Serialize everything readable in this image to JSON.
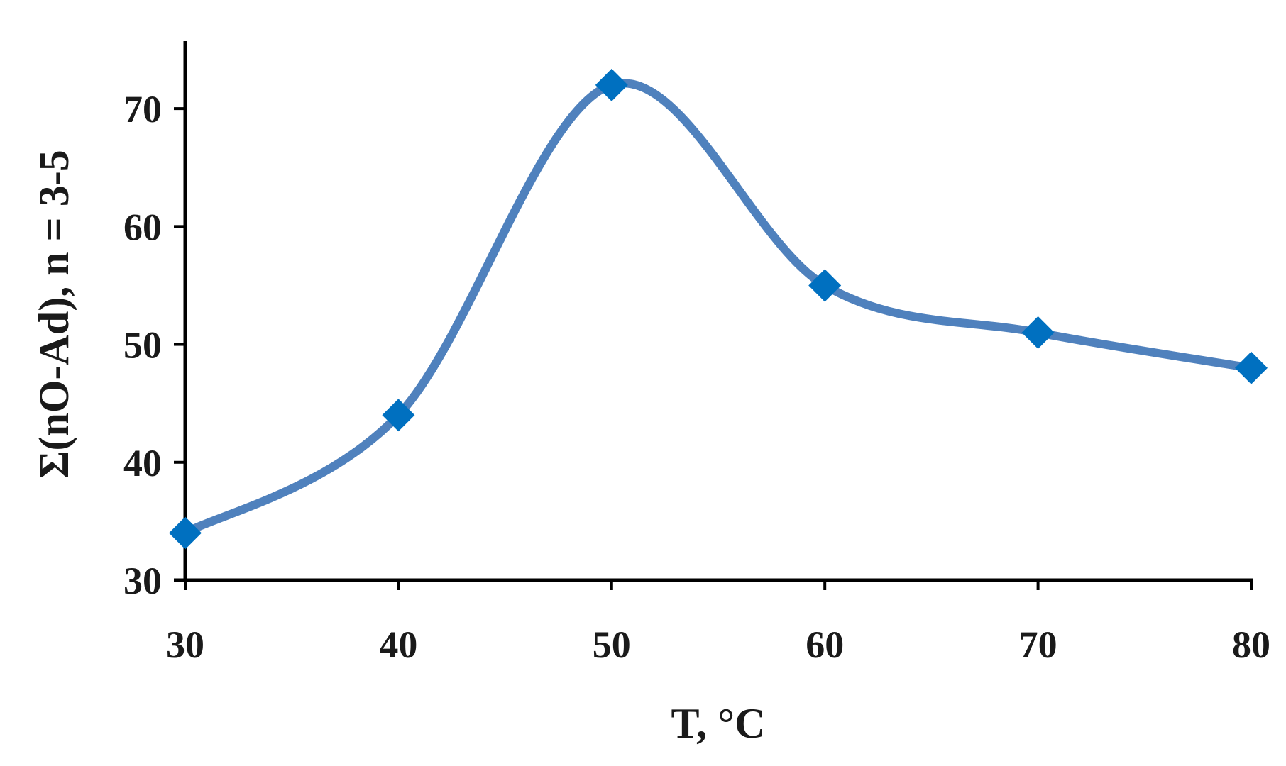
{
  "chart_data": {
    "type": "line",
    "title": "",
    "xlabel": "T, °C",
    "ylabel": "Σ(nO-Ad),  n = 3-5",
    "x": [
      30,
      40,
      50,
      60,
      70,
      80
    ],
    "series": [
      {
        "values": [
          34,
          44,
          72,
          55,
          51,
          48
        ],
        "color": "#4f81bd",
        "marker": "diamond",
        "marker_color": "#0070c0",
        "line_style": "smooth"
      }
    ],
    "xlim": [
      30,
      80
    ],
    "ylim": [
      30,
      75
    ],
    "x_ticks": [
      30,
      40,
      50,
      60,
      70,
      80
    ],
    "y_ticks": [
      30,
      40,
      50,
      60,
      70
    ],
    "grid": false,
    "legend": "none"
  }
}
